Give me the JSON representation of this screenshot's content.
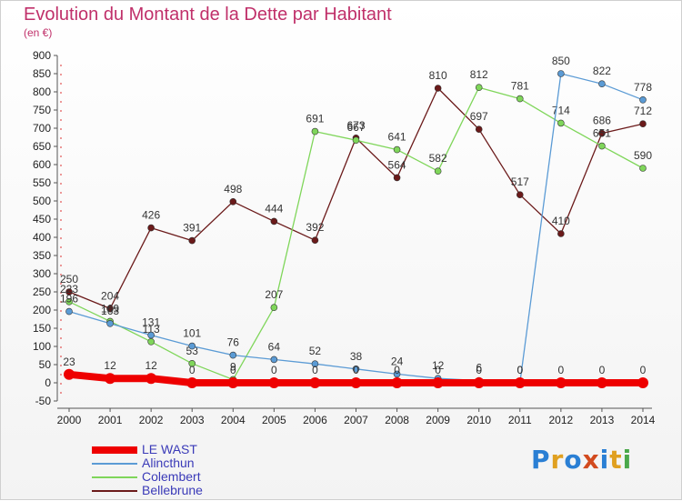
{
  "title": "Evolution du Montant de la Dette par Habitant",
  "subtitle": "(en €)",
  "logo": {
    "text": "Proxiti",
    "colors": [
      "#2a7fd4",
      "#e0a020",
      "#2a7fd4",
      "#d24a1e",
      "#2a7fd4",
      "#e0a020",
      "#4aa84a"
    ]
  },
  "chart_data": {
    "type": "line",
    "x": [
      2000,
      2001,
      2002,
      2003,
      2004,
      2005,
      2006,
      2007,
      2008,
      2009,
      2010,
      2011,
      2012,
      2013,
      2014
    ],
    "ylim": [
      -50,
      900
    ],
    "yticks": [
      -50,
      0,
      50,
      100,
      150,
      200,
      250,
      300,
      350,
      400,
      450,
      500,
      550,
      600,
      650,
      700,
      750,
      800,
      850,
      900
    ],
    "grid": false,
    "legend_position": "bottom-left",
    "series": [
      {
        "name": "Bellebrune",
        "color": "#6b1a1a",
        "values": [
          250,
          204,
          426,
          391,
          498,
          444,
          392,
          673,
          564,
          810,
          697,
          517,
          410,
          686,
          712
        ],
        "labels": [
          "250",
          "204",
          "426",
          "391",
          "498",
          "444",
          "392",
          "673",
          "564",
          "810",
          "697",
          "517",
          "410",
          "686",
          "712"
        ]
      },
      {
        "name": "Colembert",
        "color": "#7fd65a",
        "values": [
          223,
          169,
          113,
          53,
          9,
          207,
          691,
          667,
          641,
          582,
          812,
          781,
          714,
          651,
          590
        ],
        "labels": [
          "223",
          "169",
          "113",
          "53",
          "9",
          "207",
          "691",
          "667",
          "641",
          "582",
          "812",
          "781",
          "714",
          "651",
          "590"
        ]
      },
      {
        "name": "Alincthun",
        "color": "#5b9bd5",
        "values": [
          196,
          163,
          131,
          101,
          76,
          64,
          52,
          38,
          24,
          12,
          6,
          0,
          850,
          822,
          778
        ],
        "labels": [
          "196",
          "163",
          "131",
          "101",
          "76",
          "64",
          "52",
          "38",
          "24",
          "12",
          "6",
          "0",
          "850",
          "822",
          "778"
        ]
      },
      {
        "name": "LE WAST",
        "color": "#ee0000",
        "values": [
          23,
          12,
          12,
          0,
          0,
          0,
          0,
          0,
          0,
          0,
          0,
          0,
          0,
          0,
          0
        ],
        "labels": [
          "23",
          "12",
          "12",
          "0",
          "0",
          "0",
          "0",
          "0",
          "0",
          "0",
          "0",
          "0",
          "0",
          "0",
          "0"
        ]
      }
    ],
    "legend_order": [
      "LE WAST",
      "Alincthun",
      "Colembert",
      "Bellebrune"
    ]
  }
}
